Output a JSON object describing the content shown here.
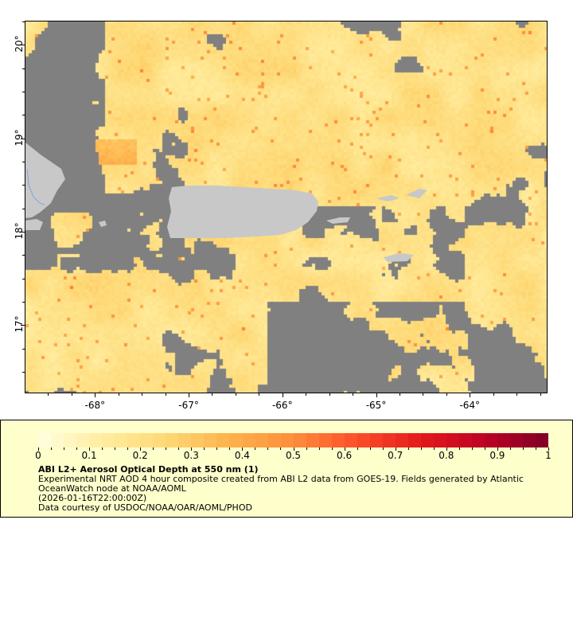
{
  "map": {
    "lon_range": [
      -68.75,
      -63.17
    ],
    "lat_range": [
      16.27,
      20.26
    ],
    "lon_ticks": [
      {
        "v": -68,
        "label": "-68°"
      },
      {
        "v": -67,
        "label": "-67°"
      },
      {
        "v": -66,
        "label": "-66°"
      },
      {
        "v": -65,
        "label": "-65°"
      },
      {
        "v": -64,
        "label": "-64°"
      }
    ],
    "lat_ticks": [
      {
        "v": 20,
        "label": "20°"
      },
      {
        "v": 19,
        "label": "19°"
      },
      {
        "v": 18,
        "label": "18°"
      },
      {
        "v": 17,
        "label": "17°"
      }
    ],
    "colors": {
      "land": "#c8c8c8",
      "nodata": "#808080",
      "river": "#7aa6d6"
    }
  },
  "colorbar": {
    "range": [
      0,
      1
    ],
    "segments": 40,
    "stops": [
      "#ffffe0",
      "#ffeda0",
      "#fed976",
      "#feb24c",
      "#fd8d3c",
      "#fc4e2a",
      "#e31a1c",
      "#bd0026",
      "#800026"
    ],
    "tick_labels": [
      "0",
      "0.1",
      "0.2",
      "0.3",
      "0.4",
      "0.5",
      "0.6",
      "0.7",
      "0.8",
      "0.9",
      "1"
    ]
  },
  "legend": {
    "title": "ABI L2+ Aerosol Optical Depth at 550 nm (1)",
    "description": "Experimental NRT AOD 4 hour composite created from ABI L2 data from GOES-19. Fields generated by Atlantic OceanWatch node at NOAA/AOML",
    "time": "(2026-01-16T22:00:00Z)",
    "credit": "Data courtesy of USDOC/NOAA/OAR/AOML/PHOD"
  }
}
